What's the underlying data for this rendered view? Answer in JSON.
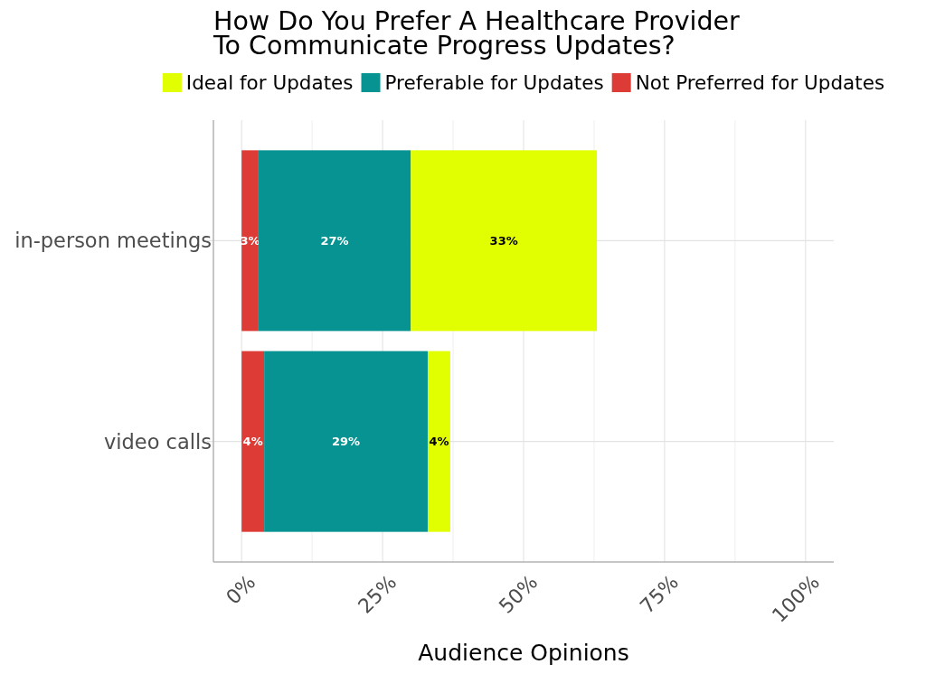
{
  "chart_data": {
    "type": "bar",
    "orientation": "horizontal",
    "stacked": true,
    "title": "How Do You Prefer A Healthcare Provider\nTo Communicate Progress Updates?",
    "xlabel": "Audience Opinions",
    "categories": [
      "in-person meetings",
      "video calls"
    ],
    "series": [
      {
        "name": "Not Preferred for Updates",
        "color": "#dd3b36",
        "values": [
          3,
          4
        ],
        "value_labels": [
          "3%",
          "4%"
        ]
      },
      {
        "name": "Preferable for Updates",
        "color": "#079391",
        "values": [
          27,
          29
        ],
        "value_labels": [
          "27%",
          "29%"
        ]
      },
      {
        "name": "Ideal for Updates",
        "color": "#e1ff00",
        "values": [
          33,
          4
        ],
        "value_labels": [
          "33%",
          "4%"
        ]
      }
    ],
    "xlim": [
      -5,
      105
    ],
    "xticks": [
      {
        "value": 0,
        "label": "0%"
      },
      {
        "value": 12.5,
        "label": null
      },
      {
        "value": 25,
        "label": "25%"
      },
      {
        "value": 37.5,
        "label": null
      },
      {
        "value": 50,
        "label": "50%"
      },
      {
        "value": 62.5,
        "label": null
      },
      {
        "value": 75,
        "label": "75%"
      },
      {
        "value": 87.5,
        "label": null
      },
      {
        "value": 100,
        "label": "100%"
      }
    ],
    "grid": true,
    "legend": "top"
  }
}
